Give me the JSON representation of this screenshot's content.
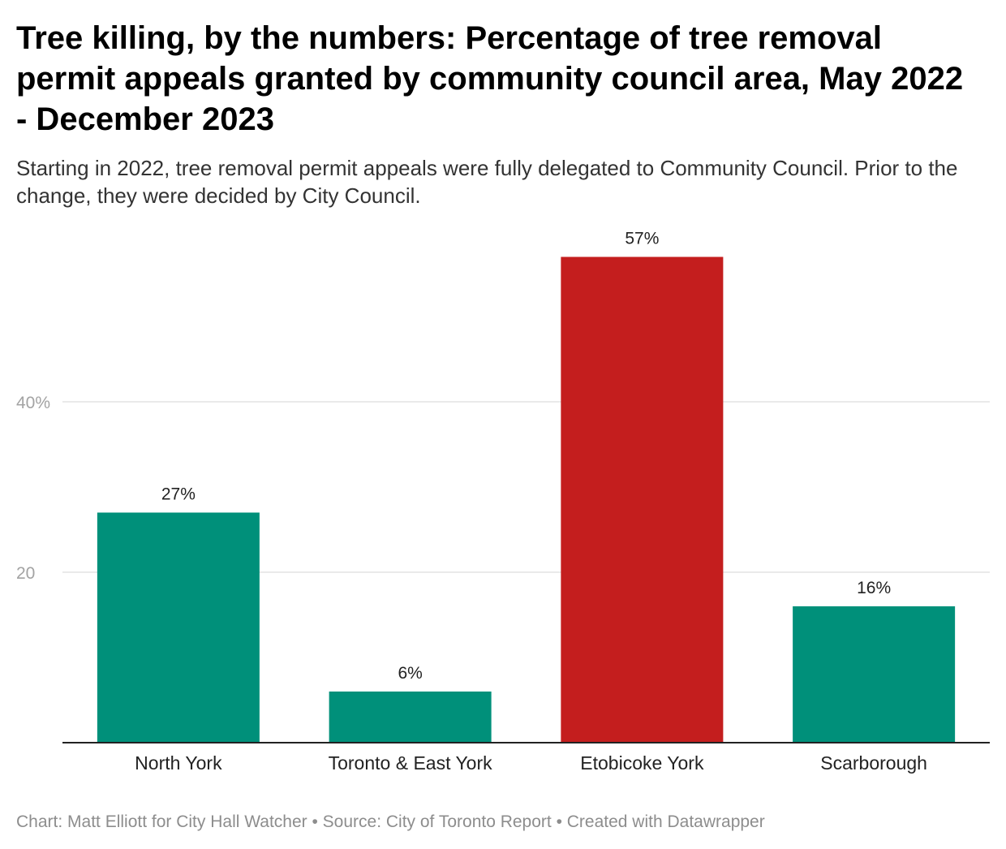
{
  "header": {
    "title": "Tree killing, by the numbers: Percentage of tree removal permit appeals granted by community council area, May 2022 - December 2023",
    "subtitle": "Starting in 2022, tree removal permit appeals were fully delegated to Community Council. Prior to the change, they were decided by City Council."
  },
  "chart_data": {
    "type": "bar",
    "categories": [
      "North York",
      "Toronto & East York",
      "Etobicoke York",
      "Scarborough"
    ],
    "values": [
      27,
      6,
      57,
      16
    ],
    "value_labels": [
      "27%",
      "6%",
      "57%",
      "16%"
    ],
    "ylim": [
      0,
      60
    ],
    "y_ticks": [
      {
        "value": 20,
        "label": "20"
      },
      {
        "value": 40,
        "label": "40%"
      }
    ],
    "grid": true,
    "colors": {
      "default_bar": "#00907a",
      "highlight_bar": "#c41e1e",
      "gridline": "#e3e3e3",
      "baseline": "#222222",
      "tick_label": "#a3a3a3",
      "value_label": "#222222",
      "category_label": "#222222"
    },
    "highlight_index": 2
  },
  "footer": {
    "text": "Chart: Matt Elliott for City Hall Watcher • Source: City of Toronto Report • Created with Datawrapper"
  }
}
